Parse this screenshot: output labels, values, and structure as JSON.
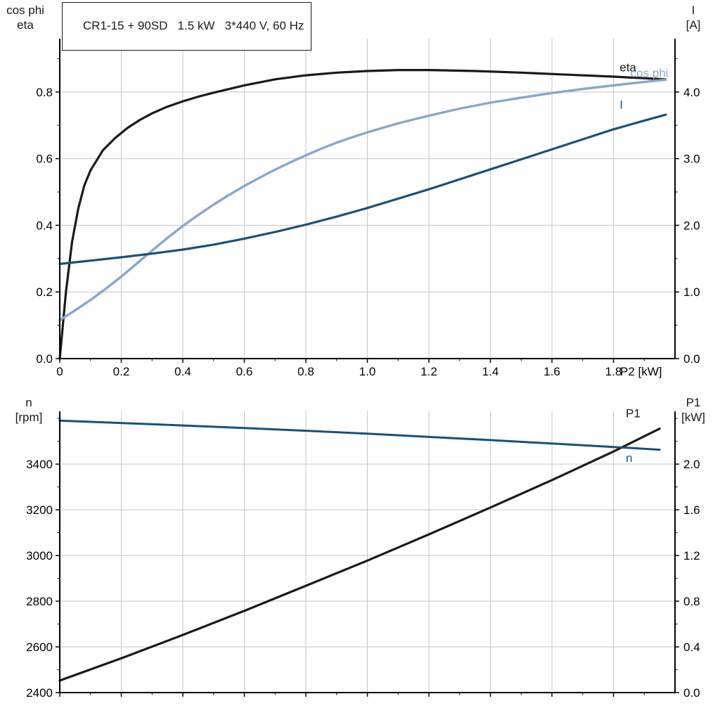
{
  "title": "CR1-15 + 90SD   1.5 kW   3*440 V, 60 Hz",
  "colors": {
    "black": "#1a1a1a",
    "dark_blue": "#17517e",
    "light_blue": "#85a8cc",
    "grid": "#c5c5c5",
    "axis": "#000000",
    "background": "#ffffff"
  },
  "chart_data": [
    {
      "id": "top",
      "type": "line",
      "x_axis": {
        "label": "P2 [kW]",
        "range": [
          0,
          2
        ],
        "minor_step": 0.1,
        "ticks": [
          {
            "v": 0,
            "l": "0"
          },
          {
            "v": 0.2,
            "l": "0.2"
          },
          {
            "v": 0.4,
            "l": "0.4"
          },
          {
            "v": 0.6,
            "l": "0.6"
          },
          {
            "v": 0.8,
            "l": "0.8"
          },
          {
            "v": 1.0,
            "l": "1.0"
          },
          {
            "v": 1.2,
            "l": "1.2"
          },
          {
            "v": 1.4,
            "l": "1.4"
          },
          {
            "v": 1.6,
            "l": "1.6"
          },
          {
            "v": 1.8,
            "l": "1.8"
          }
        ]
      },
      "left_axis": {
        "header": [
          "cos phi",
          "eta"
        ],
        "range": [
          0,
          0.96
        ],
        "minor_step": 0.1,
        "ticks": [
          {
            "v": 0.0,
            "l": "0.0"
          },
          {
            "v": 0.2,
            "l": "0.2"
          },
          {
            "v": 0.4,
            "l": "0.4"
          },
          {
            "v": 0.6,
            "l": "0.6"
          },
          {
            "v": 0.8,
            "l": "0.8"
          }
        ]
      },
      "right_axis": {
        "header": [
          "I",
          "[A]"
        ],
        "range": [
          0,
          4.8
        ],
        "minor_step": 0.5,
        "ticks": [
          {
            "v": 0.0,
            "l": "0.0"
          },
          {
            "v": 1.0,
            "l": "1.0"
          },
          {
            "v": 2.0,
            "l": "2.0"
          },
          {
            "v": 3.0,
            "l": "3.0"
          },
          {
            "v": 4.0,
            "l": "4.0"
          }
        ]
      },
      "series": [
        {
          "name": "eta",
          "color": "#1a1a1a",
          "width": 3.2,
          "scale": "left",
          "label": {
            "text": "eta",
            "x": 1.82,
            "y": 0.862
          },
          "points": [
            [
              0,
              0
            ],
            [
              0.01,
              0.1
            ],
            [
              0.02,
              0.2
            ],
            [
              0.04,
              0.35
            ],
            [
              0.06,
              0.45
            ],
            [
              0.08,
              0.52
            ],
            [
              0.1,
              0.565
            ],
            [
              0.14,
              0.625
            ],
            [
              0.18,
              0.662
            ],
            [
              0.22,
              0.692
            ],
            [
              0.26,
              0.716
            ],
            [
              0.3,
              0.736
            ],
            [
              0.35,
              0.756
            ],
            [
              0.4,
              0.772
            ],
            [
              0.45,
              0.786
            ],
            [
              0.5,
              0.798
            ],
            [
              0.6,
              0.82
            ],
            [
              0.7,
              0.838
            ],
            [
              0.8,
              0.85
            ],
            [
              0.9,
              0.858
            ],
            [
              1.0,
              0.863
            ],
            [
              1.1,
              0.866
            ],
            [
              1.2,
              0.866
            ],
            [
              1.35,
              0.863
            ],
            [
              1.5,
              0.858
            ],
            [
              1.65,
              0.852
            ],
            [
              1.8,
              0.846
            ],
            [
              1.97,
              0.838
            ]
          ]
        },
        {
          "name": "cos_phi",
          "color": "#85a8cc",
          "width": 3.4,
          "scale": "left",
          "label": {
            "text": "cos phi",
            "x": 1.855,
            "y": 0.845
          },
          "points": [
            [
              0,
              0.115
            ],
            [
              0.05,
              0.145
            ],
            [
              0.1,
              0.176
            ],
            [
              0.15,
              0.21
            ],
            [
              0.2,
              0.246
            ],
            [
              0.25,
              0.285
            ],
            [
              0.3,
              0.324
            ],
            [
              0.35,
              0.362
            ],
            [
              0.4,
              0.398
            ],
            [
              0.45,
              0.431
            ],
            [
              0.5,
              0.462
            ],
            [
              0.55,
              0.491
            ],
            [
              0.6,
              0.518
            ],
            [
              0.65,
              0.543
            ],
            [
              0.7,
              0.567
            ],
            [
              0.75,
              0.589
            ],
            [
              0.8,
              0.61
            ],
            [
              0.85,
              0.63
            ],
            [
              0.9,
              0.648
            ],
            [
              0.95,
              0.664
            ],
            [
              1.0,
              0.679
            ],
            [
              1.1,
              0.706
            ],
            [
              1.2,
              0.729
            ],
            [
              1.3,
              0.75
            ],
            [
              1.4,
              0.768
            ],
            [
              1.5,
              0.783
            ],
            [
              1.6,
              0.797
            ],
            [
              1.7,
              0.809
            ],
            [
              1.8,
              0.82
            ],
            [
              1.9,
              0.83
            ],
            [
              1.97,
              0.837
            ]
          ]
        },
        {
          "name": "I",
          "color": "#17517e",
          "width": 3.2,
          "scale": "right",
          "label": {
            "text": "I",
            "x": 1.82,
            "y": 3.75
          },
          "points": [
            [
              0,
              1.42
            ],
            [
              0.1,
              1.47
            ],
            [
              0.2,
              1.52
            ],
            [
              0.3,
              1.575
            ],
            [
              0.4,
              1.635
            ],
            [
              0.5,
              1.71
            ],
            [
              0.6,
              1.8
            ],
            [
              0.7,
              1.9
            ],
            [
              0.8,
              2.01
            ],
            [
              0.9,
              2.13
            ],
            [
              1.0,
              2.26
            ],
            [
              1.1,
              2.4
            ],
            [
              1.2,
              2.54
            ],
            [
              1.3,
              2.69
            ],
            [
              1.4,
              2.84
            ],
            [
              1.5,
              2.99
            ],
            [
              1.6,
              3.14
            ],
            [
              1.7,
              3.29
            ],
            [
              1.8,
              3.44
            ],
            [
              1.9,
              3.57
            ],
            [
              1.97,
              3.66
            ]
          ]
        }
      ]
    },
    {
      "id": "bottom",
      "type": "line",
      "x_axis": {
        "label": "",
        "range": [
          0,
          2
        ],
        "minor_step": 0.1,
        "ticks": [
          {
            "v": 0,
            "l": ""
          },
          {
            "v": 0.2,
            "l": ""
          },
          {
            "v": 0.4,
            "l": ""
          },
          {
            "v": 0.6,
            "l": ""
          },
          {
            "v": 0.8,
            "l": ""
          },
          {
            "v": 1.0,
            "l": ""
          },
          {
            "v": 1.2,
            "l": ""
          },
          {
            "v": 1.4,
            "l": ""
          },
          {
            "v": 1.6,
            "l": ""
          },
          {
            "v": 1.8,
            "l": ""
          }
        ]
      },
      "left_axis": {
        "header": [
          "n",
          "[rpm]"
        ],
        "range": [
          2400,
          3631
        ],
        "minor_step": 100,
        "ticks": [
          {
            "v": 2400,
            "l": "2400"
          },
          {
            "v": 2600,
            "l": "2600"
          },
          {
            "v": 2800,
            "l": "2800"
          },
          {
            "v": 3000,
            "l": "3000"
          },
          {
            "v": 3200,
            "l": "3200"
          },
          {
            "v": 3400,
            "l": "3400"
          }
        ]
      },
      "right_axis": {
        "header": [
          "P1",
          "[kW]"
        ],
        "range": [
          0,
          2.462
        ],
        "minor_step": 0.2,
        "ticks": [
          {
            "v": 0.0,
            "l": "0.0"
          },
          {
            "v": 0.4,
            "l": "0.4"
          },
          {
            "v": 0.8,
            "l": "0.8"
          },
          {
            "v": 1.2,
            "l": "1.2"
          },
          {
            "v": 1.6,
            "l": "1.6"
          },
          {
            "v": 2.0,
            "l": "2.0"
          }
        ]
      },
      "series": [
        {
          "name": "P1",
          "color": "#1a1a1a",
          "width": 3.2,
          "scale": "right",
          "label": {
            "text": "P1",
            "x": 1.84,
            "y": 2.41
          },
          "points": [
            [
              0,
              0.105
            ],
            [
              0.2,
              0.3
            ],
            [
              0.4,
              0.505
            ],
            [
              0.6,
              0.715
            ],
            [
              0.8,
              0.935
            ],
            [
              1.0,
              1.155
            ],
            [
              1.2,
              1.385
            ],
            [
              1.4,
              1.62
            ],
            [
              1.6,
              1.86
            ],
            [
              1.8,
              2.11
            ],
            [
              1.95,
              2.31
            ]
          ]
        },
        {
          "name": "n",
          "color": "#17517e",
          "width": 3.0,
          "scale": "left",
          "label": {
            "text": "n",
            "x": 1.84,
            "y": 3410
          },
          "points": [
            [
              0,
              3590
            ],
            [
              0.2,
              3580
            ],
            [
              0.4,
              3569
            ],
            [
              0.6,
              3558
            ],
            [
              0.8,
              3546
            ],
            [
              1.0,
              3533
            ],
            [
              1.2,
              3519
            ],
            [
              1.4,
              3505
            ],
            [
              1.6,
              3490
            ],
            [
              1.8,
              3475
            ],
            [
              1.95,
              3463
            ]
          ]
        }
      ]
    }
  ]
}
